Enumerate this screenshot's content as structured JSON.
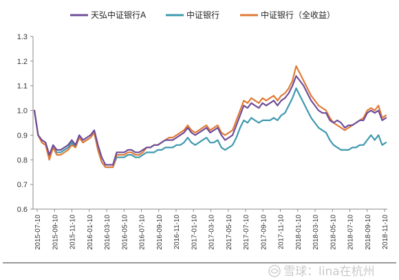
{
  "chart_data": {
    "type": "line",
    "ylim": [
      0.6,
      1.3
    ],
    "y_ticks": [
      "0.6",
      "0.7",
      "0.8",
      "0.9",
      "1.0",
      "1.1",
      "1.2",
      "1.3"
    ],
    "x_ticks": [
      "2015-07-10",
      "2015-09-10",
      "2015-11-10",
      "2016-01-10",
      "2016-03-10",
      "2016-05-10",
      "2016-07-10",
      "2016-09-10",
      "2016-11-10",
      "2017-01-10",
      "2017-03-10",
      "2017-05-10",
      "2017-07-10",
      "2017-09-10",
      "2017-11-10",
      "2018-01-10",
      "2018-03-10",
      "2018-05-10",
      "2018-07-10",
      "2018-09-10",
      "2018-11-10"
    ],
    "legend_position": "top",
    "grid": false,
    "series": [
      {
        "name": "天弘中证银行A",
        "color": "#6e4c98",
        "values": [
          1.0,
          0.9,
          0.88,
          0.87,
          0.82,
          0.86,
          0.84,
          0.84,
          0.85,
          0.86,
          0.88,
          0.86,
          0.9,
          0.88,
          0.89,
          0.9,
          0.92,
          0.86,
          0.81,
          0.78,
          0.78,
          0.78,
          0.83,
          0.83,
          0.83,
          0.84,
          0.84,
          0.83,
          0.83,
          0.84,
          0.85,
          0.85,
          0.86,
          0.86,
          0.87,
          0.88,
          0.88,
          0.88,
          0.89,
          0.9,
          0.91,
          0.93,
          0.91,
          0.9,
          0.91,
          0.92,
          0.93,
          0.91,
          0.92,
          0.93,
          0.9,
          0.88,
          0.89,
          0.9,
          0.94,
          0.98,
          1.02,
          1.01,
          1.03,
          1.02,
          1.01,
          1.03,
          1.02,
          1.03,
          1.04,
          1.02,
          1.04,
          1.05,
          1.07,
          1.1,
          1.14,
          1.12,
          1.1,
          1.07,
          1.04,
          1.02,
          1.0,
          0.99,
          0.99,
          0.96,
          0.95,
          0.96,
          0.95,
          0.93,
          0.94,
          0.94,
          0.95,
          0.96,
          0.96,
          0.99,
          1.0,
          0.99,
          1.0,
          0.96,
          0.97
        ]
      },
      {
        "name": "中证银行",
        "color": "#3d98ae",
        "values": [
          1.0,
          0.9,
          0.87,
          0.86,
          0.81,
          0.85,
          0.83,
          0.83,
          0.84,
          0.85,
          0.87,
          0.85,
          0.89,
          0.87,
          0.88,
          0.89,
          0.91,
          0.84,
          0.79,
          0.77,
          0.77,
          0.77,
          0.81,
          0.81,
          0.81,
          0.82,
          0.82,
          0.81,
          0.81,
          0.82,
          0.83,
          0.83,
          0.83,
          0.84,
          0.84,
          0.85,
          0.85,
          0.85,
          0.86,
          0.86,
          0.87,
          0.89,
          0.87,
          0.86,
          0.87,
          0.88,
          0.89,
          0.87,
          0.87,
          0.88,
          0.85,
          0.84,
          0.85,
          0.86,
          0.89,
          0.93,
          0.96,
          0.95,
          0.97,
          0.96,
          0.95,
          0.96,
          0.96,
          0.96,
          0.97,
          0.96,
          0.98,
          0.99,
          1.02,
          1.05,
          1.09,
          1.06,
          1.03,
          1.0,
          0.97,
          0.95,
          0.93,
          0.92,
          0.91,
          0.88,
          0.86,
          0.85,
          0.84,
          0.84,
          0.84,
          0.85,
          0.85,
          0.86,
          0.86,
          0.88,
          0.9,
          0.88,
          0.9,
          0.86,
          0.87
        ]
      },
      {
        "name": "中证银行（全收益）",
        "color": "#e07a35",
        "values": [
          1.0,
          0.9,
          0.87,
          0.86,
          0.8,
          0.85,
          0.82,
          0.82,
          0.83,
          0.84,
          0.86,
          0.85,
          0.89,
          0.87,
          0.88,
          0.89,
          0.91,
          0.84,
          0.79,
          0.77,
          0.77,
          0.77,
          0.82,
          0.82,
          0.82,
          0.83,
          0.83,
          0.82,
          0.82,
          0.83,
          0.85,
          0.85,
          0.86,
          0.86,
          0.87,
          0.88,
          0.89,
          0.89,
          0.9,
          0.91,
          0.92,
          0.94,
          0.92,
          0.91,
          0.92,
          0.93,
          0.94,
          0.92,
          0.93,
          0.94,
          0.91,
          0.9,
          0.91,
          0.92,
          0.96,
          1.0,
          1.04,
          1.03,
          1.05,
          1.04,
          1.03,
          1.05,
          1.04,
          1.05,
          1.06,
          1.04,
          1.06,
          1.07,
          1.09,
          1.12,
          1.18,
          1.15,
          1.12,
          1.09,
          1.06,
          1.04,
          1.02,
          1.01,
          1.0,
          0.97,
          0.95,
          0.94,
          0.93,
          0.92,
          0.93,
          0.94,
          0.95,
          0.96,
          0.97,
          1.0,
          1.01,
          1.0,
          1.02,
          0.97,
          0.98
        ]
      }
    ]
  },
  "watermark": {
    "icon": "snowball-logo-icon",
    "text": "雪球：lina在杭州"
  }
}
